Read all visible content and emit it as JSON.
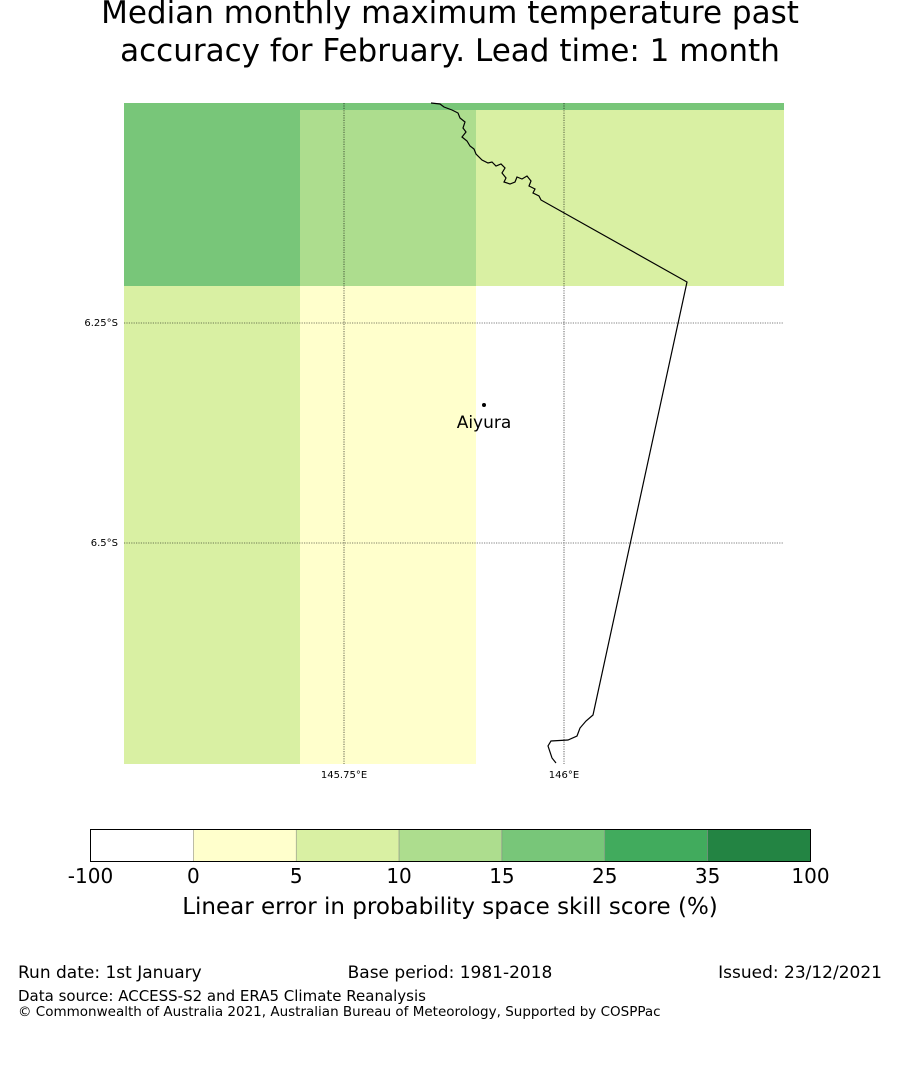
{
  "title": {
    "line1": "Median monthly maximum temperature past",
    "line2": "accuracy for February. Lead time: 1 month"
  },
  "map": {
    "gridlines": {
      "lat_labels": [
        "6.25°S",
        "6.5°S"
      ],
      "lon_labels": [
        "145.75°E",
        "146°E"
      ]
    },
    "places": [
      {
        "name": "Aiyura"
      }
    ],
    "cells": [
      {
        "row": 0,
        "col": 0,
        "category": "15-25"
      },
      {
        "row": 0,
        "col": 1,
        "category": "10-15"
      },
      {
        "row": 0,
        "col": 2,
        "category": "5-10"
      },
      {
        "row": 1,
        "col": 0,
        "category": "5-10"
      },
      {
        "row": 1,
        "col": 1,
        "category": "0-5"
      },
      {
        "row": 1,
        "col": 2,
        "category": "-100-0"
      }
    ],
    "colors": {
      "-100-0": "#ffffff",
      "0-5": "#ffffcc",
      "5-10": "#d9f0a3",
      "10-15": "#addd8e",
      "15-25": "#78c679",
      "25-35": "#41ab5d",
      "35-100": "#238443"
    }
  },
  "colorbar": {
    "boundaries": [
      "-100",
      "0",
      "5",
      "10",
      "15",
      "25",
      "35",
      "100"
    ],
    "colors": [
      "#ffffff",
      "#ffffcc",
      "#d9f0a3",
      "#addd8e",
      "#78c679",
      "#41ab5d",
      "#238443"
    ],
    "label": "Linear error in probability space skill score (%)"
  },
  "footer": {
    "run_date": "Run date: 1st January",
    "base_period": "Base period: 1981-2018",
    "issued": "Issued: 23/12/2021",
    "data_source": "Data source: ACCESS-S2 and ERA5 Climate Reanalysis",
    "copyright": "© Commonwealth of Australia 2021, Australian Bureau of Meteorology, Supported by COSPPac"
  }
}
